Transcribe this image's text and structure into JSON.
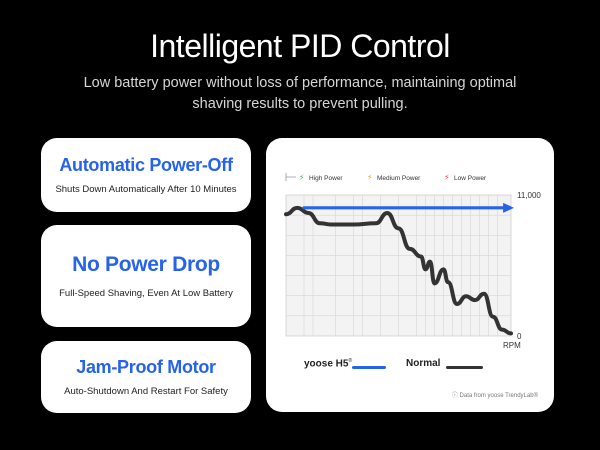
{
  "header": {
    "title": "Intelligent PID Control",
    "subtitle": "Low battery power without loss of performance, maintaining optimal shaving results to prevent pulling."
  },
  "features": [
    {
      "title": "Automatic Power-Off",
      "desc": "Shuts Down Automatically After 10 Minutes"
    },
    {
      "title": "No Power Drop",
      "desc": "Full-Speed Shaving, Even At Low Battery"
    },
    {
      "title": "Jam-Proof Motor",
      "desc": "Auto-Shutdown And Restart For Safety"
    }
  ],
  "legend": {
    "yoose_label": "yoose H5",
    "normal_label": "Normal"
  },
  "footnote": "ⓘ Data from yoose TrendyLab®",
  "colors": {
    "accent": "#2563eb",
    "normal_line": "#333333",
    "high_power": "#22c55e",
    "medium_power": "#f59e0b",
    "low_power": "#ef4444"
  },
  "chart_data": {
    "type": "line",
    "title": "",
    "xlabel": "",
    "ylabel": "RPM",
    "ytick_labels": [
      "11,000",
      "0"
    ],
    "ylim": [
      0,
      11000
    ],
    "grid": true,
    "legend_position": "bottom",
    "phases": [
      {
        "name": "High Power",
        "icon": "lightning-icon",
        "color": "#22c55e"
      },
      {
        "name": "Medium Power",
        "icon": "lightning-icon",
        "color": "#f59e0b"
      },
      {
        "name": "Low Power",
        "icon": "lightning-icon",
        "color": "#ef4444"
      }
    ],
    "x": [
      0,
      0.05,
      0.1,
      0.15,
      0.2,
      0.3,
      0.4,
      0.45,
      0.5,
      0.55,
      0.6,
      0.62,
      0.64,
      0.66,
      0.7,
      0.72,
      0.76,
      0.8,
      0.84,
      0.88,
      0.92,
      0.96,
      1.0
    ],
    "series": [
      {
        "name": "yoose H5",
        "color": "#2563eb",
        "values": [
          10000,
          10000,
          10000,
          10000,
          10000,
          10000,
          10000,
          10000,
          10000,
          10000,
          10000,
          10000,
          10000,
          10000,
          10000,
          10000,
          10000,
          10000,
          10000,
          10000,
          10000,
          10000,
          10000
        ]
      },
      {
        "name": "Normal",
        "color": "#333333",
        "values": [
          9500,
          10000,
          9600,
          8800,
          8700,
          8700,
          8800,
          9600,
          8400,
          6800,
          6200,
          5200,
          5800,
          4100,
          5200,
          4200,
          2500,
          3100,
          2800,
          3300,
          1500,
          500,
          200
        ]
      }
    ]
  }
}
